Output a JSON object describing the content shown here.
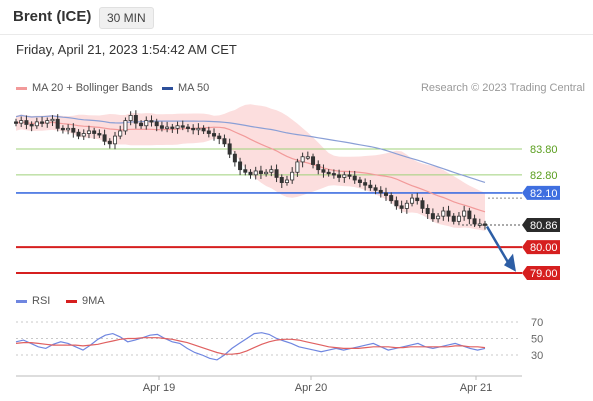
{
  "header": {
    "instrument": "Brent (ICE)",
    "timeframe": "30 MIN",
    "datetime": "Friday, April 21, 2023 1:54:42 AM CET"
  },
  "legend": {
    "ma20_bb": "MA 20 + Bollinger Bands",
    "ma50": "MA 50",
    "rsi": "RSI",
    "rsi_ma": "9MA"
  },
  "credit": "Research © 2023 Trading Central",
  "colors": {
    "ma20": "#f29a9a",
    "bb_fill": "#fbd3d3",
    "ma50": "#8a9fd6",
    "candle": "#333333",
    "support": "#d61f1f",
    "pivot": "#3f6fe0",
    "resistance": "#9fd17a",
    "resistance_text": "#5a9e1e",
    "arrow": "#2d5ea5",
    "rsi": "#6f86e0",
    "rsi_ma": "#e06060"
  },
  "chart_data": [
    {
      "type": "candlestick",
      "title": "",
      "x_ticks": [
        "Apr 19",
        "Apr 20",
        "Apr 21"
      ],
      "levels": [
        {
          "label": "83.80",
          "value": 83.8,
          "kind": "resistance"
        },
        {
          "label": "82.80",
          "value": 82.8,
          "kind": "resistance"
        },
        {
          "label": "82.10",
          "value": 82.1,
          "kind": "pivot"
        },
        {
          "label": "80.86",
          "value": 80.86,
          "kind": "last"
        },
        {
          "label": "80.00",
          "value": 80.0,
          "kind": "support"
        },
        {
          "label": "79.00",
          "value": 79.0,
          "kind": "support"
        }
      ],
      "ylim": [
        78.6,
        85.6
      ],
      "series": [
        {
          "name": "MA 20 + Bollinger Bands",
          "indicator": "bollinger"
        },
        {
          "name": "MA 50",
          "indicator": "ma50"
        }
      ],
      "forecast": "down toward 79.00",
      "close": [
        84.8,
        84.9,
        84.75,
        84.7,
        84.85,
        84.8,
        84.9,
        84.95,
        84.6,
        84.55,
        84.6,
        84.45,
        84.3,
        84.4,
        84.5,
        84.4,
        84.35,
        84.1,
        84.0,
        84.3,
        84.5,
        84.9,
        85.1,
        84.8,
        84.7,
        84.9,
        84.85,
        84.7,
        84.6,
        84.65,
        84.6,
        84.7,
        84.65,
        84.6,
        84.55,
        84.6,
        84.5,
        84.4,
        84.3,
        84.2,
        84.0,
        83.6,
        83.3,
        83.0,
        82.9,
        82.8,
        82.95,
        82.85,
        82.9,
        83.0,
        82.7,
        82.5,
        82.6,
        82.9,
        83.3,
        83.5,
        83.5,
        83.2,
        83.0,
        82.9,
        82.85,
        82.8,
        82.7,
        82.8,
        82.75,
        82.6,
        82.5,
        82.4,
        82.3,
        82.2,
        82.1,
        82.0,
        81.8,
        81.6,
        81.5,
        81.7,
        81.9,
        81.8,
        81.5,
        81.3,
        81.1,
        81.2,
        81.4,
        81.2,
        81.0,
        81.2,
        81.4,
        81.1,
        80.9,
        80.9,
        80.86
      ]
    },
    {
      "type": "line",
      "title": "",
      "ylim": [
        20,
        75
      ],
      "y_ticks": [
        70,
        50,
        30
      ],
      "series": [
        {
          "name": "RSI",
          "values": [
            46,
            48,
            44,
            40,
            38,
            43,
            46,
            44,
            40,
            36,
            42,
            49,
            54,
            56,
            52,
            46,
            48,
            51,
            54,
            55,
            50,
            46,
            44,
            38,
            33,
            30,
            26,
            24,
            30,
            38,
            44,
            50,
            56,
            57,
            55,
            50,
            47,
            44,
            40,
            38,
            36,
            34,
            36,
            38,
            36,
            38,
            40,
            42,
            44,
            40,
            36,
            38,
            40,
            42,
            44,
            40,
            38,
            40,
            42,
            44,
            41,
            38,
            36,
            38
          ]
        },
        {
          "name": "9MA",
          "values": [
            44,
            45,
            45,
            44,
            43,
            42,
            42,
            42,
            42,
            41,
            42,
            43,
            45,
            47,
            49,
            50,
            50,
            51,
            51,
            51,
            50,
            49,
            47,
            45,
            42,
            39,
            36,
            33,
            31,
            31,
            32,
            35,
            39,
            43,
            46,
            48,
            49,
            49,
            48,
            46,
            44,
            42,
            40,
            39,
            38,
            38,
            38,
            39,
            40,
            40,
            40,
            39,
            39,
            40,
            40,
            40,
            40,
            40,
            40,
            41,
            41,
            40,
            40,
            39
          ]
        }
      ]
    }
  ]
}
